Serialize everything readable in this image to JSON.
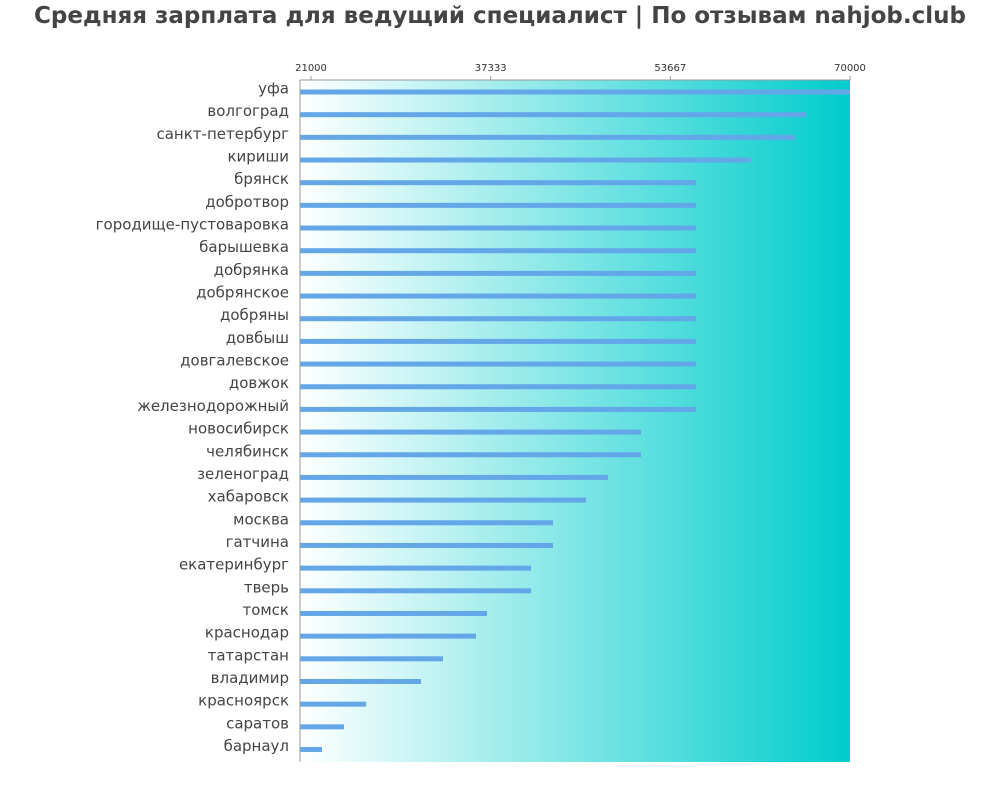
{
  "chart_data": {
    "type": "bar",
    "orientation": "horizontal",
    "title": "Средняя зарплата для ведущий специалист | По отзывам nahjob.club",
    "xlabel": "",
    "ylabel": "",
    "xlim": [
      21000,
      70000
    ],
    "ticks": [
      "21000",
      "37333",
      "53667",
      "70000"
    ],
    "tick_values": [
      21000,
      37333,
      53667,
      70000
    ],
    "categories": [
      "уфа",
      "волгоград",
      "санкт-петербург",
      "кириши",
      "брянск",
      "добротвор",
      "городище-пустоваровка",
      "барышевка",
      "добрянка",
      "добрянское",
      "добряны",
      "довбыш",
      "довгалевское",
      "довжок",
      "железнодорожный",
      "новосибирск",
      "челябинск",
      "зеленоград",
      "хабаровск",
      "москва",
      "гатчина",
      "екатеринбург",
      "тверь",
      "томск",
      "краснодар",
      "татарстан",
      "владимир",
      "красноярск",
      "саратов",
      "барнаул"
    ],
    "values": [
      70000,
      66000,
      65000,
      61000,
      56000,
      56000,
      56000,
      56000,
      56000,
      56000,
      56000,
      56000,
      56000,
      56000,
      56000,
      51000,
      51000,
      48000,
      46000,
      43000,
      43000,
      41000,
      41000,
      37000,
      36000,
      33000,
      31000,
      26000,
      24000,
      22000
    ],
    "colors": {
      "bar": "#63a7e8",
      "gradient_start": "#ffffff",
      "gradient_end": "#00cccc",
      "axis": "#999999",
      "text": "#444444"
    }
  }
}
